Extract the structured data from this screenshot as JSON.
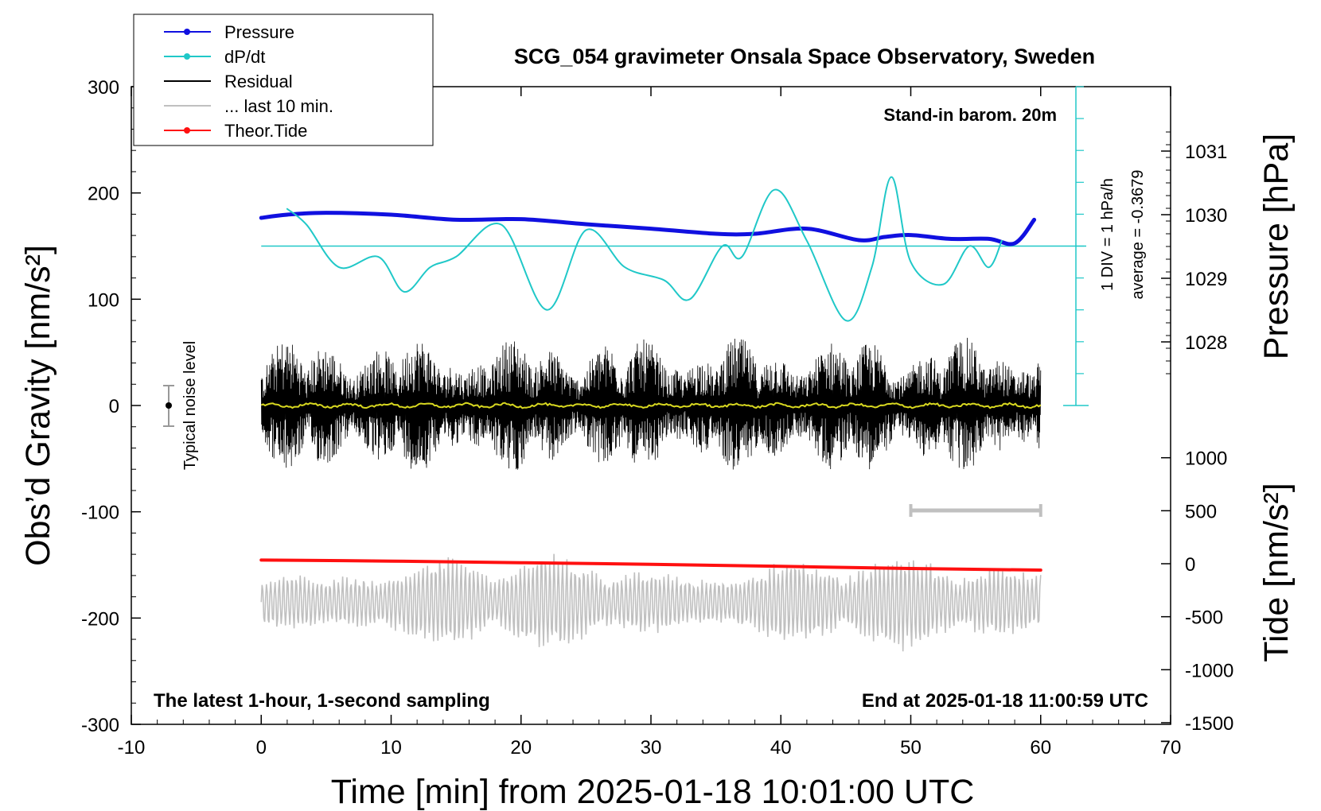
{
  "chart_data": {
    "type": "line",
    "title": "SCG_054 gravimeter Onsala Space Observatory, Sweden",
    "xlabel": "Time [min] from 2025-01-18 10:01:00 UTC",
    "ylabel_left": "Obs’d Gravity [nm/s²]",
    "ylabel_right_top": "Pressure [hPa]",
    "ylabel_right_bottom": "Tide [nm/s²]",
    "xlim": [
      -10,
      70
    ],
    "ylim_left": [
      -300,
      300
    ],
    "x_ticks": [
      "-10",
      "0",
      "10",
      "20",
      "30",
      "40",
      "50",
      "60",
      "70"
    ],
    "y_ticks_left": [
      "300",
      "200",
      "100",
      "0",
      "-100",
      "-200",
      "-300"
    ],
    "pressure_ticks": [
      "1031",
      "1030",
      "1029",
      "1028"
    ],
    "tide_ticks": [
      "1000",
      "500",
      "0",
      "-500",
      "-1000",
      "-1500"
    ],
    "legend": [
      {
        "label": "Pressure",
        "color": "#1010e0",
        "marker": true
      },
      {
        "label": "dP/dt",
        "color": "#20c8c8",
        "marker": true
      },
      {
        "label": "Residual",
        "color": "#000000",
        "marker": false
      },
      {
        "label": "... last 10 min.",
        "color": "#c0c0c0",
        "marker": false
      },
      {
        "label": "Theor.Tide",
        "color": "#ff1010",
        "marker": true
      }
    ],
    "annotations": {
      "barometer": "Stand-in barom. 20m",
      "dpdt_scale": "1 DIV = 1 hPa/h",
      "dpdt_average": "average = -0.3679",
      "noise": "Typical noise level",
      "sampling": "The latest 1-hour, 1-second sampling",
      "end_time": "End at 2025-01-18 11:00:59 UTC"
    },
    "series": [
      {
        "name": "Pressure",
        "axis": "pressure_hPa",
        "x": [
          0,
          2,
          5,
          10,
          15,
          20,
          25,
          30,
          35,
          38,
          42,
          46,
          48,
          50,
          53,
          56,
          58,
          59.5
        ],
        "values": [
          1029.95,
          1030.0,
          1030.03,
          1030.0,
          1029.92,
          1029.93,
          1029.85,
          1029.78,
          1029.7,
          1029.7,
          1029.78,
          1029.6,
          1029.65,
          1029.68,
          1029.62,
          1029.62,
          1029.55,
          1029.92
        ]
      },
      {
        "name": "dP/dt",
        "axis": "left_gravity_units",
        "x": [
          2,
          3.5,
          6,
          9,
          11,
          13,
          15,
          18.5,
          22,
          25,
          28,
          31,
          33,
          35.5,
          37,
          39.5,
          42,
          45,
          47,
          48.5,
          50,
          52.5,
          54.5,
          56,
          57
        ],
        "values": [
          185,
          170,
          130,
          140,
          107,
          130,
          140,
          170,
          90,
          165,
          130,
          118,
          100,
          150,
          140,
          203,
          155,
          80,
          130,
          215,
          135,
          114,
          150,
          130,
          155
        ]
      },
      {
        "name": "Theor.Tide",
        "axis": "tide_nm_s2",
        "x": [
          0,
          10,
          20,
          30,
          40,
          50,
          60
        ],
        "values": [
          35,
          25,
          10,
          -5,
          -25,
          -45,
          -60
        ]
      }
    ],
    "residual": {
      "x_range": [
        0,
        60
      ],
      "mean": 0,
      "envelope": 75
    },
    "last_10_min": {
      "x_range": [
        0,
        60
      ],
      "offset": -185,
      "amplitude": 40
    },
    "last_10_min_bar": [
      50,
      60
    ]
  }
}
